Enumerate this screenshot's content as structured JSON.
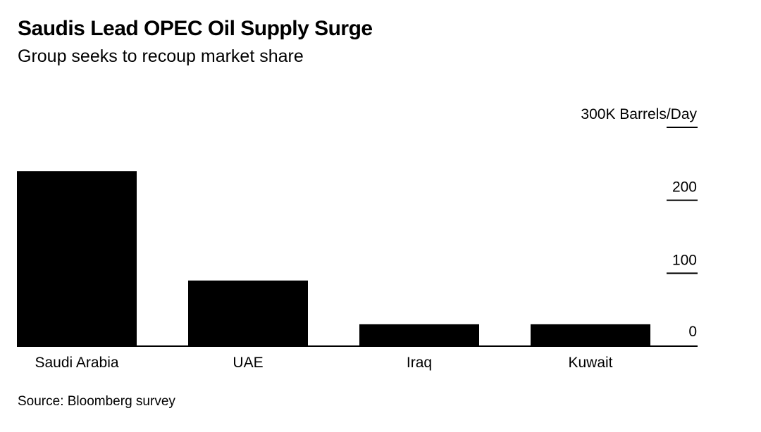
{
  "chart_data": {
    "type": "bar",
    "title": "Saudis Lead OPEC Oil Supply Surge",
    "subtitle": "Group seeks to recoup market share",
    "categories": [
      "Saudi Arabia",
      "UAE",
      "Iraq",
      "Kuwait"
    ],
    "values": [
      240,
      90,
      30,
      30
    ],
    "y_ticks": [
      {
        "value": 0,
        "label": "0"
      },
      {
        "value": 100,
        "label": "100"
      },
      {
        "value": 200,
        "label": "200"
      },
      {
        "value": 300,
        "label": "300K Barrels/Day"
      }
    ],
    "ylim": [
      0,
      300
    ],
    "grid": false,
    "axis_position": "right",
    "bar_color": "#000000",
    "source": "Source: Bloomberg survey"
  }
}
